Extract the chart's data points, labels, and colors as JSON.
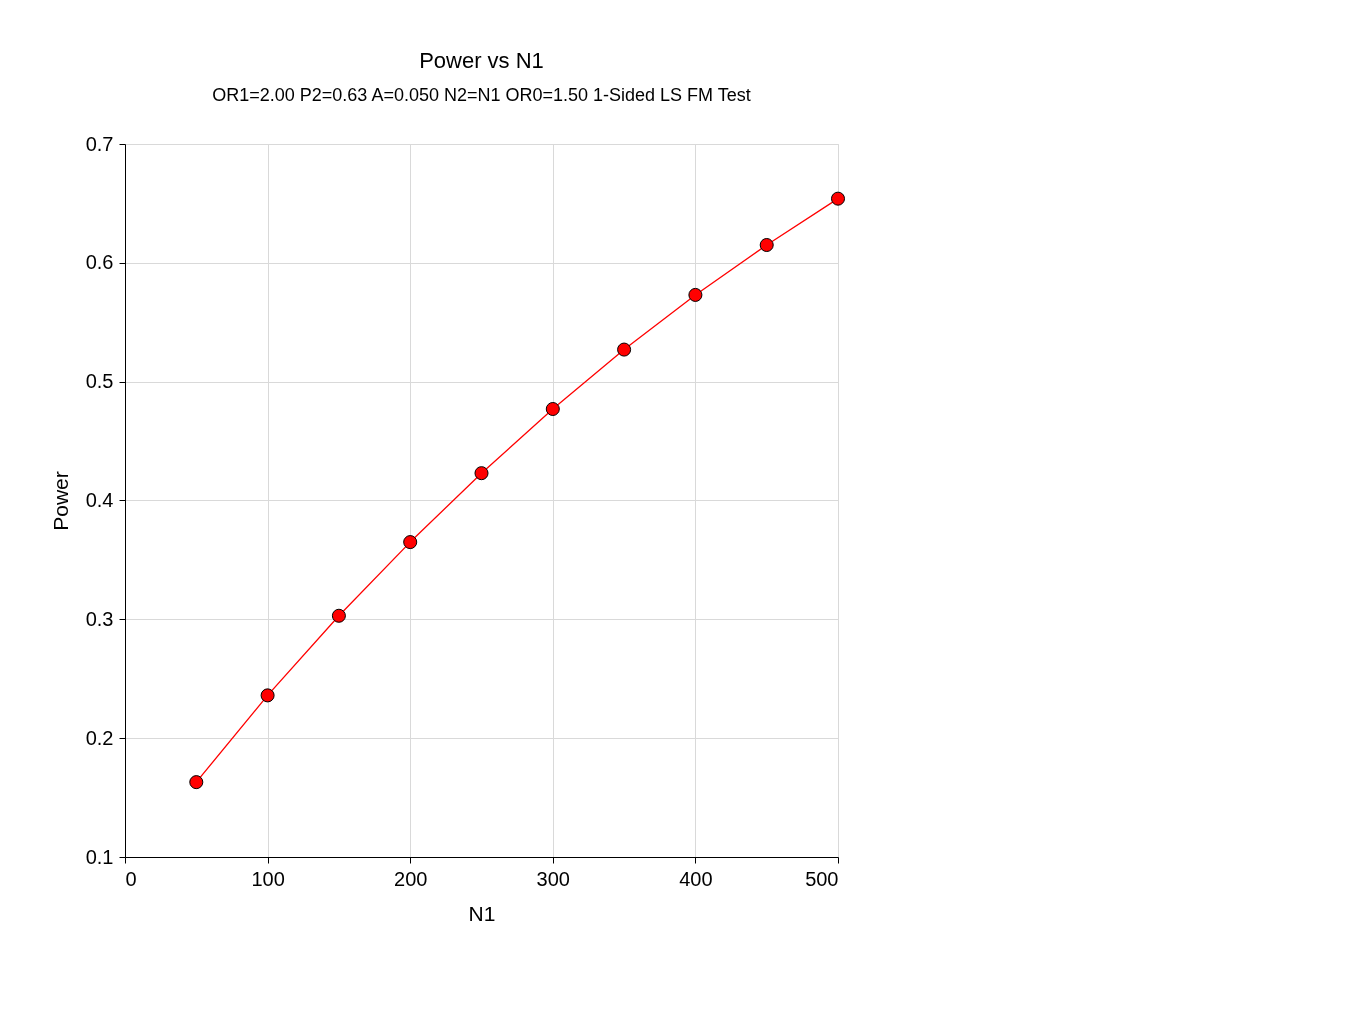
{
  "chart_data": {
    "type": "line",
    "title": "Power vs N1",
    "subtitle": "OR1=2.00 P2=0.63 A=0.050 N2=N1 OR0=1.50 1-Sided LS FM Test",
    "xlabel": "N1",
    "ylabel": "Power",
    "x": [
      50,
      100,
      150,
      200,
      250,
      300,
      350,
      400,
      450,
      500
    ],
    "series": [
      {
        "color": "#ff0000",
        "values": [
          0.163,
          0.236,
          0.303,
          0.365,
          0.423,
          0.477,
          0.527,
          0.573,
          0.615,
          0.654
        ]
      }
    ],
    "xlim": [
      0,
      500
    ],
    "xticks": [
      0,
      100,
      200,
      300,
      400,
      500
    ],
    "ylim": [
      0.1,
      0.7
    ],
    "yticks": [
      0.1,
      0.2,
      0.3,
      0.4,
      0.5,
      0.6,
      0.7
    ],
    "grid": true,
    "marker": "circle",
    "line_style": "solid"
  }
}
